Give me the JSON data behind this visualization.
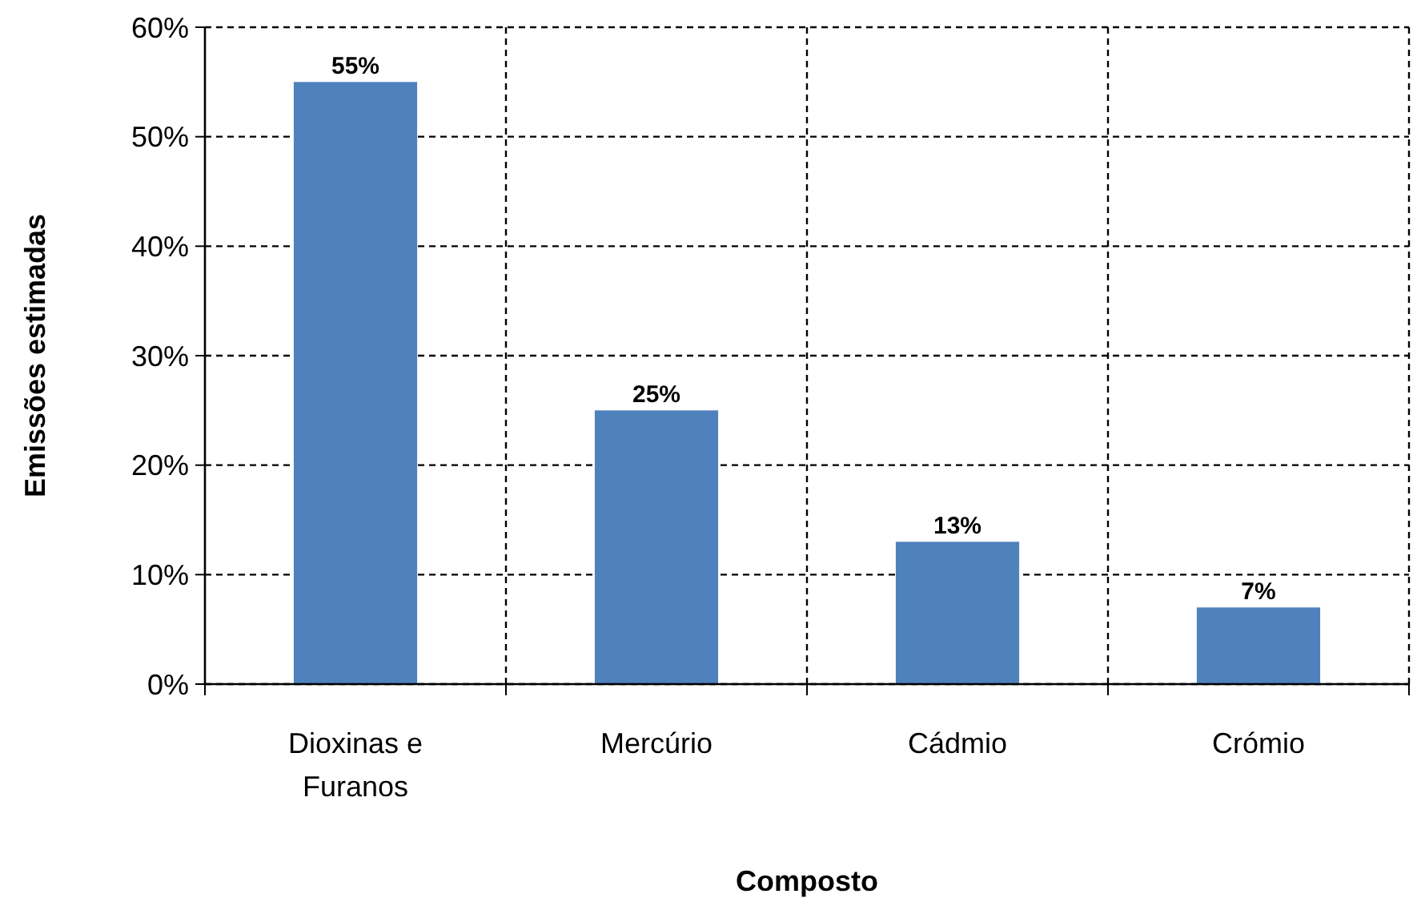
{
  "chart_data": {
    "type": "bar",
    "xlabel": "Composto",
    "ylabel": "Emissões estimadas",
    "categories": [
      "Dioxinas e Furanos",
      "Mercúrio",
      "Cádmio",
      "Crómio"
    ],
    "values": [
      55,
      25,
      13,
      7
    ],
    "color": "#4f81bd",
    "value_labels": [
      "55%",
      "25%",
      "13%",
      "7%"
    ],
    "ylim": [
      0,
      60
    ],
    "yticks": [
      {
        "value": 0,
        "label": "0%"
      },
      {
        "value": 10,
        "label": "10%"
      },
      {
        "value": 20,
        "label": "20%"
      },
      {
        "value": 30,
        "label": "30%"
      },
      {
        "value": 40,
        "label": "40%"
      },
      {
        "value": 50,
        "label": "50%"
      },
      {
        "value": 60,
        "label": "60%"
      }
    ],
    "grid": true
  }
}
